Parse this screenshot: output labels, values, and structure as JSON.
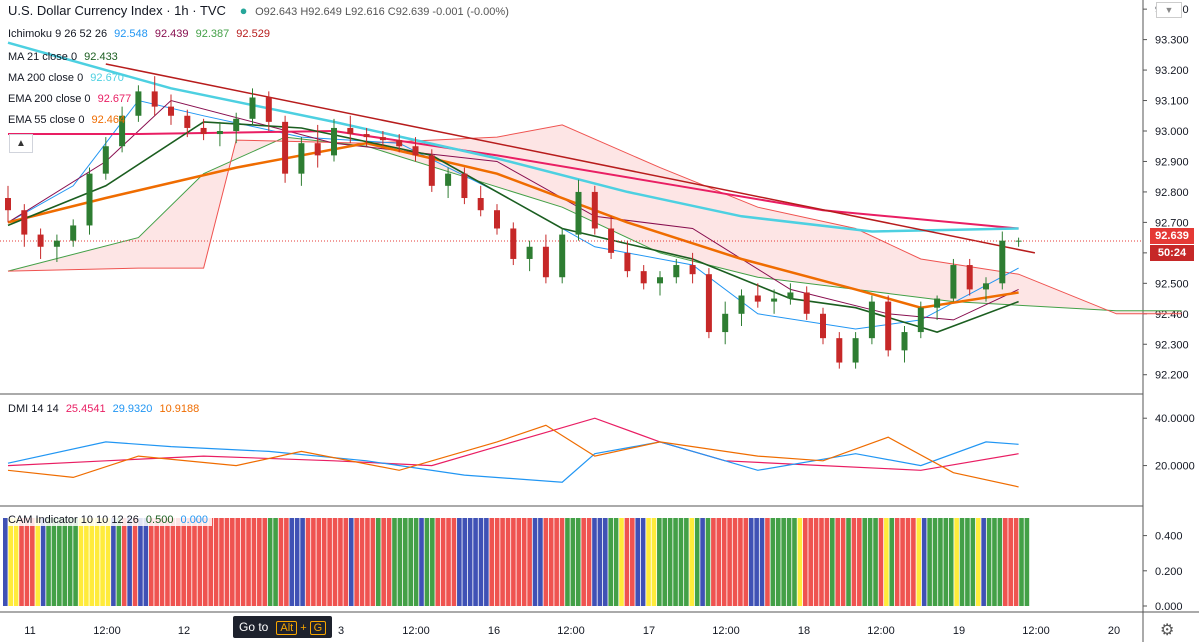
{
  "header": {
    "symbol": "U.S. Dollar Currency Index · 1h · TVC",
    "ohlc": "O92.643 H92.649 L92.616 C92.639 -0.001 (-0.00%)",
    "ichimoku": {
      "label": "Ichimoku 9 26 52 26",
      "values": [
        "92.548",
        "92.439",
        "92.387",
        "92.529"
      ],
      "colors": [
        "#2196f3",
        "#880e4f",
        "#43a047",
        "#b71c1c"
      ]
    },
    "ma21": {
      "label": "MA 21 close 0",
      "value": "92.433",
      "color": "#1b5e20"
    },
    "ma200": {
      "label": "MA 200 close 0",
      "value": "92.670",
      "color": "#4dd0e1"
    },
    "ema200": {
      "label": "EMA 200 close 0",
      "value": "92.677",
      "color": "#e91e63"
    },
    "ema55": {
      "label": "EMA 55 close 0",
      "value": "92.464",
      "color": "#ef6c00"
    }
  },
  "dmi": {
    "label": "DMI 14 14",
    "values": [
      "25.4541",
      "29.9320",
      "10.9188"
    ],
    "colors": [
      "#e91e63",
      "#2196f3",
      "#ef6c00"
    ]
  },
  "cam": {
    "label": "CAM Indicator 10 10 12 26",
    "values": [
      "0.500",
      "0.000"
    ],
    "colors": [
      "#1b5e20",
      "#2196f3"
    ]
  },
  "price_axis": [
    "93.400",
    "93.300",
    "93.200",
    "93.100",
    "93.000",
    "92.900",
    "92.800",
    "92.700",
    "92.600",
    "92.500",
    "92.400",
    "92.300",
    "92.200"
  ],
  "dmi_axis": [
    "40.0000",
    "20.0000"
  ],
  "cam_axis": [
    "0.400",
    "0.200",
    "0.000"
  ],
  "time_axis": [
    "11",
    "12:00",
    "12",
    "3",
    "12:00",
    "16",
    "12:00",
    "17",
    "12:00",
    "18",
    "12:00",
    "19",
    "12:00",
    "20"
  ],
  "last_price": "92.639",
  "countdown": "50:24",
  "goto": {
    "label": "Go to",
    "key1": "Alt",
    "plus": "+",
    "key2": "G"
  },
  "colors": {
    "up": "#26a69a",
    "down": "#ef5350",
    "candle_up_body": "#2e7d32",
    "candle_down_body": "#c62828",
    "trendline": "#b71c1c"
  },
  "chart_data": {
    "type": "candlestick",
    "y_range": [
      92.14,
      93.43
    ],
    "candles": [
      [
        92.78,
        92.82,
        92.7,
        92.74
      ],
      [
        92.74,
        92.76,
        92.62,
        92.66
      ],
      [
        92.66,
        92.68,
        92.58,
        92.62
      ],
      [
        92.62,
        92.66,
        92.57,
        92.64
      ],
      [
        92.64,
        92.71,
        92.62,
        92.69
      ],
      [
        92.69,
        92.88,
        92.66,
        92.86
      ],
      [
        92.86,
        92.98,
        92.84,
        92.95
      ],
      [
        92.95,
        93.08,
        92.93,
        93.05
      ],
      [
        93.05,
        93.15,
        93.03,
        93.13
      ],
      [
        93.13,
        93.18,
        93.05,
        93.08
      ],
      [
        93.08,
        93.12,
        93.02,
        93.05
      ],
      [
        93.05,
        93.07,
        92.98,
        93.01
      ],
      [
        93.01,
        93.04,
        92.97,
        92.99
      ],
      [
        92.99,
        93.03,
        92.95,
        93.0
      ],
      [
        93.0,
        93.06,
        92.96,
        93.04
      ],
      [
        93.04,
        93.14,
        93.02,
        93.11
      ],
      [
        93.11,
        93.13,
        93.0,
        93.03
      ],
      [
        93.03,
        93.05,
        92.83,
        92.86
      ],
      [
        92.86,
        92.98,
        92.82,
        92.96
      ],
      [
        92.96,
        93.02,
        92.88,
        92.92
      ],
      [
        92.92,
        93.04,
        92.9,
        93.01
      ],
      [
        93.01,
        93.05,
        92.96,
        92.99
      ],
      [
        92.99,
        93.01,
        92.95,
        92.98
      ],
      [
        92.98,
        93.0,
        92.95,
        92.97
      ],
      [
        92.97,
        92.99,
        92.93,
        92.95
      ],
      [
        92.95,
        92.98,
        92.9,
        92.92
      ],
      [
        92.92,
        92.94,
        92.8,
        92.82
      ],
      [
        92.82,
        92.88,
        92.78,
        92.86
      ],
      [
        92.86,
        92.88,
        92.76,
        92.78
      ],
      [
        92.78,
        92.82,
        92.72,
        92.74
      ],
      [
        92.74,
        92.76,
        92.66,
        92.68
      ],
      [
        92.68,
        92.7,
        92.56,
        92.58
      ],
      [
        92.58,
        92.64,
        92.54,
        92.62
      ],
      [
        92.62,
        92.66,
        92.5,
        92.52
      ],
      [
        92.52,
        92.68,
        92.5,
        92.66
      ],
      [
        92.66,
        92.84,
        92.64,
        92.8
      ],
      [
        92.8,
        92.82,
        92.66,
        92.68
      ],
      [
        92.68,
        92.72,
        92.58,
        92.6
      ],
      [
        92.6,
        92.64,
        92.52,
        92.54
      ],
      [
        92.54,
        92.56,
        92.48,
        92.5
      ],
      [
        92.5,
        92.54,
        92.46,
        92.52
      ],
      [
        92.52,
        92.58,
        92.5,
        92.56
      ],
      [
        92.56,
        92.6,
        92.5,
        92.53
      ],
      [
        92.53,
        92.55,
        92.32,
        92.34
      ],
      [
        92.34,
        92.44,
        92.3,
        92.4
      ],
      [
        92.4,
        92.48,
        92.36,
        92.46
      ],
      [
        92.46,
        92.5,
        92.42,
        92.44
      ],
      [
        92.44,
        92.48,
        92.4,
        92.45
      ],
      [
        92.45,
        92.5,
        92.43,
        92.47
      ],
      [
        92.47,
        92.49,
        92.38,
        92.4
      ],
      [
        92.4,
        92.42,
        92.3,
        92.32
      ],
      [
        92.32,
        92.34,
        92.22,
        92.24
      ],
      [
        92.24,
        92.34,
        92.22,
        92.32
      ],
      [
        92.32,
        92.46,
        92.3,
        92.44
      ],
      [
        92.44,
        92.46,
        92.26,
        92.28
      ],
      [
        92.28,
        92.36,
        92.24,
        92.34
      ],
      [
        92.34,
        92.44,
        92.32,
        92.42
      ],
      [
        92.42,
        92.46,
        92.38,
        92.45
      ],
      [
        92.45,
        92.58,
        92.44,
        92.56
      ],
      [
        92.56,
        92.58,
        92.46,
        92.48
      ],
      [
        92.48,
        92.52,
        92.44,
        92.5
      ],
      [
        92.5,
        92.67,
        92.48,
        92.64
      ],
      [
        92.64,
        92.65,
        92.62,
        92.64
      ]
    ],
    "lines": {
      "ema200": [
        [
          0,
          92.99
        ],
        [
          8,
          92.99
        ],
        [
          20,
          93.0
        ],
        [
          30,
          92.92
        ],
        [
          40,
          92.83
        ],
        [
          50,
          92.74
        ],
        [
          62,
          92.68
        ]
      ],
      "ma200": [
        [
          0,
          93.29
        ],
        [
          10,
          93.14
        ],
        [
          20,
          93.03
        ],
        [
          30,
          92.91
        ],
        [
          38,
          92.8
        ],
        [
          45,
          92.72
        ],
        [
          53,
          92.67
        ],
        [
          62,
          92.68
        ]
      ],
      "ema55": [
        [
          0,
          92.7
        ],
        [
          6,
          92.78
        ],
        [
          14,
          92.88
        ],
        [
          22,
          92.96
        ],
        [
          30,
          92.86
        ],
        [
          38,
          92.7
        ],
        [
          45,
          92.58
        ],
        [
          52,
          92.48
        ],
        [
          56,
          92.42
        ],
        [
          62,
          92.47
        ]
      ],
      "ma21": [
        [
          0,
          92.69
        ],
        [
          6,
          92.82
        ],
        [
          12,
          93.03
        ],
        [
          18,
          93.01
        ],
        [
          26,
          92.92
        ],
        [
          34,
          92.68
        ],
        [
          42,
          92.58
        ],
        [
          48,
          92.45
        ],
        [
          52,
          92.42
        ],
        [
          57,
          92.34
        ],
        [
          62,
          92.44
        ]
      ],
      "tenkan": [
        [
          0,
          92.7
        ],
        [
          4,
          92.82
        ],
        [
          8,
          93.1
        ],
        [
          12,
          93.05
        ],
        [
          18,
          92.98
        ],
        [
          24,
          92.96
        ],
        [
          30,
          92.8
        ],
        [
          36,
          92.62
        ],
        [
          42,
          92.56
        ],
        [
          46,
          92.4
        ],
        [
          52,
          92.35
        ],
        [
          56,
          92.38
        ],
        [
          62,
          92.55
        ]
      ],
      "kijun": [
        [
          0,
          92.7
        ],
        [
          6,
          92.9
        ],
        [
          10,
          93.1
        ],
        [
          20,
          92.96
        ],
        [
          30,
          92.9
        ],
        [
          36,
          92.72
        ],
        [
          42,
          92.68
        ],
        [
          48,
          92.48
        ],
        [
          54,
          92.4
        ],
        [
          58,
          92.38
        ],
        [
          62,
          92.48
        ]
      ],
      "trend": [
        [
          6,
          93.22
        ],
        [
          63,
          92.6
        ]
      ]
    },
    "cloud": {
      "span_a": [
        [
          0,
          92.54
        ],
        [
          8,
          92.65
        ],
        [
          12,
          92.86
        ],
        [
          17,
          92.98
        ],
        [
          22,
          92.95
        ],
        [
          28,
          92.85
        ],
        [
          34,
          92.75
        ],
        [
          40,
          92.6
        ],
        [
          46,
          92.52
        ],
        [
          52,
          92.48
        ],
        [
          58,
          92.44
        ],
        [
          68,
          92.41
        ],
        [
          72,
          92.41
        ]
      ],
      "span_b": [
        [
          0,
          92.54
        ],
        [
          8,
          92.55
        ],
        [
          12,
          92.55
        ],
        [
          14,
          92.97
        ],
        [
          22,
          92.96
        ],
        [
          30,
          92.98
        ],
        [
          34,
          93.02
        ],
        [
          40,
          92.88
        ],
        [
          46,
          92.75
        ],
        [
          52,
          92.68
        ],
        [
          56,
          92.58
        ],
        [
          62,
          92.53
        ],
        [
          68,
          92.4
        ],
        [
          72,
          92.4
        ]
      ]
    },
    "dmi": {
      "plus": [
        [
          0,
          20
        ],
        [
          6,
          22
        ],
        [
          12,
          24
        ],
        [
          20,
          22
        ],
        [
          26,
          20
        ],
        [
          30,
          28
        ],
        [
          33,
          34
        ],
        [
          36,
          40
        ],
        [
          40,
          30
        ],
        [
          44,
          22
        ],
        [
          50,
          20
        ],
        [
          56,
          18
        ],
        [
          62,
          25
        ]
      ],
      "minus": [
        [
          0,
          21
        ],
        [
          6,
          30
        ],
        [
          10,
          28
        ],
        [
          16,
          26
        ],
        [
          22,
          22
        ],
        [
          28,
          16
        ],
        [
          34,
          13
        ],
        [
          36,
          25
        ],
        [
          40,
          30
        ],
        [
          46,
          18
        ],
        [
          52,
          25
        ],
        [
          56,
          20
        ],
        [
          60,
          30
        ],
        [
          62,
          29
        ]
      ],
      "adx": [
        [
          0,
          18
        ],
        [
          4,
          15
        ],
        [
          8,
          24
        ],
        [
          14,
          20
        ],
        [
          18,
          26
        ],
        [
          24,
          18
        ],
        [
          30,
          30
        ],
        [
          33,
          37
        ],
        [
          36,
          24
        ],
        [
          40,
          30
        ],
        [
          46,
          24
        ],
        [
          50,
          22
        ],
        [
          54,
          32
        ],
        [
          58,
          17
        ],
        [
          62,
          11
        ]
      ]
    },
    "cam_bars": "BYYRRRYBGGGGGGYYYYYYBGRBRBBRRRRRRRRRRRRRRRRRRRRRRGGRRBBBRRRRRRRRBRRRRGRRGGGGGBGGRRRRBBBBBBRRRRRRRRBBRRRRGGGRRBBBGGYRRBBYYGGGGGGYGBGRRRRRRRBBBRGGGGGYRRRRRGRRGRRGGGRYGRRRRYBGGGGGYGGGYBGGGRRRGG"
  }
}
